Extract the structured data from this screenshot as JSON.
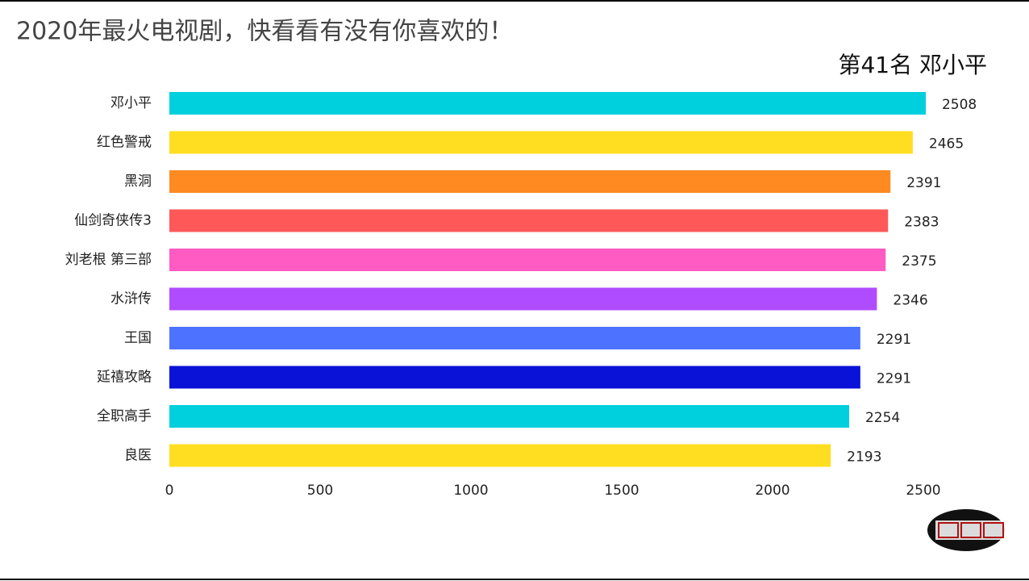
{
  "chart_data": {
    "type": "bar",
    "orientation": "horizontal",
    "title": "2020年最火电视剧，快看看有没有你喜欢的！",
    "subtitle": "第41名 邓小平",
    "categories": [
      "邓小平",
      "红色警戒",
      "黑洞",
      "仙剑奇侠传3",
      "刘老根 第三部",
      "水浒传",
      "王国",
      "延禧攻略",
      "全职高手",
      "良医"
    ],
    "values": [
      2508,
      2465,
      2391,
      2383,
      2375,
      2346,
      2291,
      2291,
      2254,
      2193
    ],
    "colors": [
      "#00cfdd",
      "#ffde21",
      "#ff8a22",
      "#ff5858",
      "#ff5bc2",
      "#b04cff",
      "#4c72ff",
      "#0a12d8",
      "#00cfdd",
      "#ffde21"
    ],
    "xlim": [
      0,
      2600
    ],
    "xticks": [
      0,
      500,
      1000,
      1500,
      2000,
      2500
    ],
    "grid": false
  }
}
